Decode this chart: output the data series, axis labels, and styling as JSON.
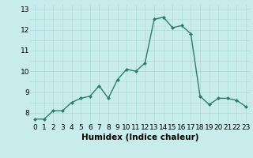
{
  "x": [
    0,
    1,
    2,
    3,
    4,
    5,
    6,
    7,
    8,
    9,
    10,
    11,
    12,
    13,
    14,
    15,
    16,
    17,
    18,
    19,
    20,
    21,
    22,
    23
  ],
  "y": [
    7.7,
    7.7,
    8.1,
    8.1,
    8.5,
    8.7,
    8.8,
    9.3,
    8.7,
    9.6,
    10.1,
    10.0,
    10.4,
    12.5,
    12.6,
    12.1,
    12.2,
    11.8,
    8.8,
    8.4,
    8.7,
    8.7,
    8.6,
    8.3
  ],
  "xlabel": "Humidex (Indice chaleur)",
  "ylim": [
    7.5,
    13.2
  ],
  "xlim": [
    -0.5,
    23.5
  ],
  "yticks": [
    8,
    9,
    10,
    11,
    12,
    13
  ],
  "xticks": [
    0,
    1,
    2,
    3,
    4,
    5,
    6,
    7,
    8,
    9,
    10,
    11,
    12,
    13,
    14,
    15,
    16,
    17,
    18,
    19,
    20,
    21,
    22,
    23
  ],
  "line_color": "#2E7D6B",
  "bg_color": "#C8ECEC",
  "grid_color": "#AADADA",
  "tick_label_fontsize": 6.5,
  "xlabel_fontsize": 7.5
}
